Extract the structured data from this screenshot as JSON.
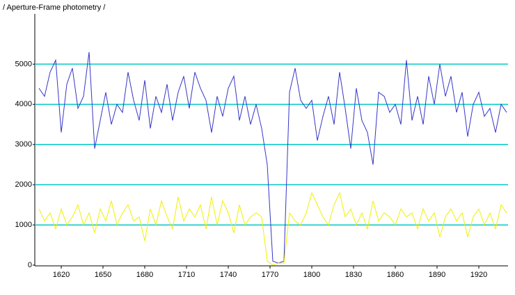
{
  "chart_data": {
    "type": "line",
    "title": "/ Aperture-Frame photometry /",
    "x": [
      1604,
      1608,
      1612,
      1616,
      1620,
      1624,
      1628,
      1632,
      1636,
      1640,
      1644,
      1648,
      1652,
      1656,
      1660,
      1664,
      1668,
      1672,
      1676,
      1680,
      1684,
      1688,
      1692,
      1696,
      1700,
      1704,
      1708,
      1712,
      1716,
      1720,
      1724,
      1728,
      1732,
      1736,
      1740,
      1744,
      1748,
      1752,
      1756,
      1760,
      1764,
      1768,
      1772,
      1776,
      1780,
      1784,
      1788,
      1792,
      1796,
      1800,
      1804,
      1808,
      1812,
      1816,
      1820,
      1824,
      1828,
      1832,
      1836,
      1840,
      1844,
      1848,
      1852,
      1856,
      1860,
      1864,
      1868,
      1872,
      1876,
      1880,
      1884,
      1888,
      1892,
      1896,
      1900,
      1904,
      1908,
      1912,
      1916,
      1920,
      1924,
      1928,
      1932,
      1936,
      1940
    ],
    "series": [
      {
        "color": "#3535c8",
        "values": [
          4400,
          4200,
          4800,
          5100,
          3300,
          4500,
          4900,
          3900,
          4200,
          5300,
          2900,
          3600,
          4300,
          3500,
          4000,
          3800,
          4800,
          4100,
          3600,
          4600,
          3400,
          4200,
          3800,
          4500,
          3600,
          4300,
          4700,
          3900,
          4800,
          4400,
          4100,
          3300,
          4200,
          3700,
          4400,
          4700,
          3600,
          4200,
          3500,
          4000,
          3400,
          2500,
          100,
          50,
          100,
          4300,
          4900,
          4100,
          3900,
          4100,
          3100,
          3700,
          4200,
          3500,
          4800,
          3900,
          2900,
          4400,
          3600,
          3300,
          2500,
          4300,
          4200,
          3800,
          4000,
          3500,
          5100,
          3600,
          4200,
          3500,
          4700,
          4000,
          5000,
          4200,
          4700,
          3800,
          4300,
          3200,
          4000,
          4300,
          3700,
          3900,
          3300,
          4000,
          3800
        ]
      },
      {
        "color": "#f0f000",
        "values": [
          1400,
          1100,
          1300,
          900,
          1400,
          1000,
          1200,
          1500,
          1000,
          1300,
          800,
          1400,
          1100,
          1600,
          1000,
          1300,
          1500,
          1100,
          1200,
          600,
          1400,
          1000,
          1600,
          1200,
          900,
          1700,
          1100,
          1400,
          1200,
          1500,
          900,
          1700,
          1000,
          1600,
          1300,
          800,
          1500,
          1000,
          1200,
          1300,
          1200,
          100,
          0,
          50,
          50,
          1300,
          1100,
          1000,
          1300,
          1800,
          1500,
          1200,
          1000,
          1500,
          1800,
          1200,
          1400,
          1000,
          1300,
          900,
          1600,
          1100,
          1300,
          1200,
          1000,
          1400,
          1200,
          1300,
          900,
          1400,
          1100,
          1300,
          700,
          1200,
          1400,
          1100,
          1300,
          700,
          1200,
          1400,
          1000,
          1300,
          900,
          1500,
          1300
        ]
      }
    ],
    "xlim": [
      1601,
      1941
    ],
    "xticks": [
      1620,
      1650,
      1680,
      1710,
      1740,
      1770,
      1800,
      1830,
      1860,
      1890,
      1920
    ],
    "ylim": [
      0,
      6250
    ],
    "yticks": [
      0,
      1000,
      2000,
      3000,
      4000,
      5000
    ],
    "grid": true,
    "grid_color": "#00c8c8"
  }
}
